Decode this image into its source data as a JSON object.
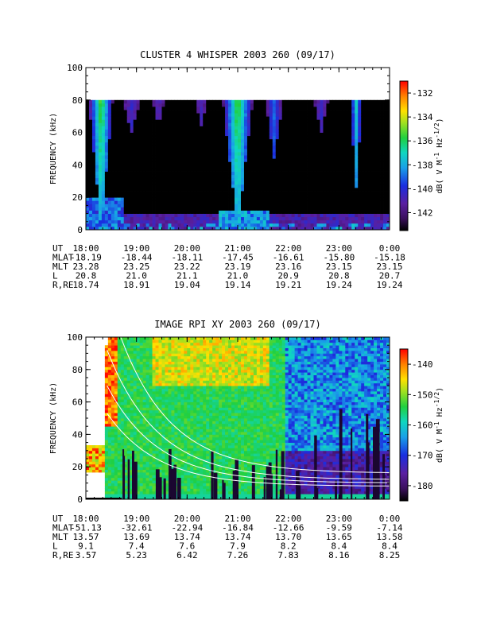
{
  "chart_data": [
    {
      "type": "heatmap",
      "title": "CLUSTER 4 WHISPER 2003 260 (09/17)",
      "ylabel": "FREQUENCY (kHz)",
      "ylim": [
        0,
        100
      ],
      "yticks": [
        "0",
        "20",
        "40",
        "60",
        "80",
        "100"
      ],
      "x_ticks": [
        "18:00",
        "19:00",
        "20:00",
        "21:00",
        "22:00",
        "23:00",
        "0:00"
      ],
      "data_max_frequency_khz": 80,
      "colorbar": {
        "label": "dB( V M⁻¹ Hz⁻¹ᐟ²)",
        "label_parts": [
          "dB( V M",
          "-1",
          " Hz",
          "-1/2",
          ")"
        ],
        "ticks": [
          "-132",
          "-134",
          "-136",
          "-138",
          "-140",
          "-142"
        ],
        "range": [
          -143.5,
          -131
        ]
      },
      "ephemeris_rows": [
        {
          "label": "UT",
          "values": [
            "18:00",
            "19:00",
            "20:00",
            "21:00",
            "22:00",
            "23:00",
            "0:00"
          ]
        },
        {
          "label": "MLAT",
          "values": [
            "-18.19",
            "-18.44",
            "-18.11",
            "-17.45",
            "-16.61",
            "-15.80",
            "-15.18"
          ]
        },
        {
          "label": "MLT",
          "values": [
            "23.28",
            "23.25",
            "23.22",
            "23.19",
            "23.16",
            "23.15",
            "23.15"
          ]
        },
        {
          "label": "L",
          "values": [
            "20.8",
            "21.0",
            "21.1",
            "21.0",
            "20.9",
            "20.8",
            "20.7"
          ]
        },
        {
          "label": "R,RE",
          "values": [
            "18.74",
            "18.91",
            "19.04",
            "19.14",
            "19.21",
            "19.24",
            "19.24"
          ]
        }
      ]
    },
    {
      "type": "heatmap",
      "title": "IMAGE RPI XY 2003 260 (09/17)",
      "ylabel": "FREQUENCY (kHz)",
      "ylim": [
        0,
        100
      ],
      "yticks": [
        "0",
        "20",
        "40",
        "60",
        "80",
        "100"
      ],
      "x_ticks": [
        "18:00",
        "19:00",
        "20:00",
        "21:00",
        "22:00",
        "23:00",
        "0:00"
      ],
      "colorbar": {
        "label": "dB( V M⁻¹ Hz⁻¹ᐟ²)",
        "label_parts": [
          "dB( V M",
          "-1",
          " Hz",
          "-1/2",
          ")"
        ],
        "ticks": [
          "-140",
          "-150",
          "-160",
          "-170",
          "-180"
        ],
        "range": [
          -185,
          -135
        ]
      },
      "ephemeris_rows": [
        {
          "label": "UT",
          "values": [
            "18:00",
            "19:00",
            "20:00",
            "21:00",
            "22:00",
            "23:00",
            "0:00"
          ]
        },
        {
          "label": "MLAT",
          "values": [
            "-51.13",
            "-32.61",
            "-22.94",
            "-16.84",
            "-12.66",
            "-9.59",
            "-7.14"
          ]
        },
        {
          "label": "MLT",
          "values": [
            "13.57",
            "13.69",
            "13.74",
            "13.74",
            "13.70",
            "13.65",
            "13.58"
          ]
        },
        {
          "label": "L",
          "values": [
            "9.1",
            "7.4",
            "7.6",
            "7.9",
            "8.2",
            "8.4",
            "8.4"
          ]
        },
        {
          "label": "R,RE",
          "values": [
            "3.57",
            "5.23",
            "6.42",
            "7.26",
            "7.83",
            "8.16",
            "8.25"
          ]
        }
      ]
    }
  ]
}
